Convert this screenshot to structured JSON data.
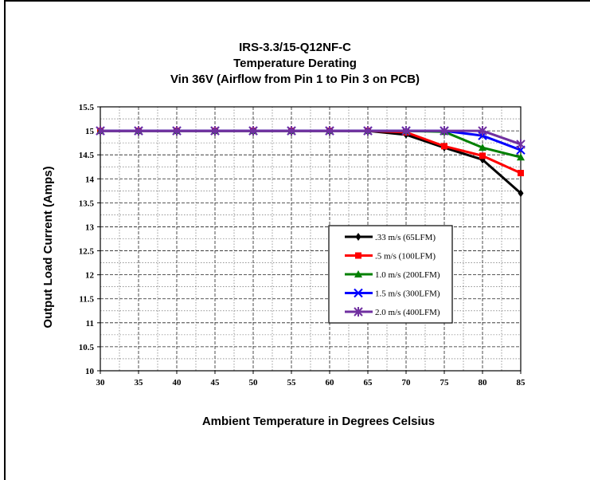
{
  "chart_data": {
    "type": "line",
    "title": "IRS-3.3/15-Q12NF-C",
    "subtitle": "Temperature Derating",
    "subtitle2": "Vin 36V (Airflow from Pin 1 to Pin 3 on PCB)",
    "xlabel": "Ambient Temperature in Degrees Celsius",
    "ylabel": "Output Load Current (Amps)",
    "xlim": [
      30,
      85
    ],
    "ylim": [
      10,
      15.5
    ],
    "x_ticks": [
      "30",
      "35",
      "40",
      "45",
      "50",
      "55",
      "60",
      "65",
      "70",
      "75",
      "80",
      "85"
    ],
    "y_ticks": [
      "10",
      "10.5",
      "11",
      "11.5",
      "12",
      "12.5",
      "13",
      "13.5",
      "14",
      "14.5",
      "15",
      "15.5"
    ],
    "grid": true,
    "legend_position": "center-right",
    "x": [
      30,
      35,
      40,
      45,
      50,
      55,
      60,
      65,
      70,
      75,
      80,
      85
    ],
    "series": [
      {
        "name": ".33 m/s (65LFM)",
        "color": "#000000",
        "marker": "diamond",
        "values": [
          15,
          15,
          15,
          15,
          15,
          15,
          15,
          15,
          14.92,
          14.65,
          14.4,
          13.7
        ]
      },
      {
        "name": ".5 m/s (100LFM)",
        "color": "#ff0000",
        "marker": "square",
        "values": [
          15,
          15,
          15,
          15,
          15,
          15,
          15,
          15,
          14.97,
          14.68,
          14.48,
          14.12
        ]
      },
      {
        "name": "1.0 m/s (200LFM)",
        "color": "#008000",
        "marker": "triangle",
        "values": [
          15,
          15,
          15,
          15,
          15,
          15,
          15,
          15,
          15,
          14.98,
          14.65,
          14.45
        ]
      },
      {
        "name": "1.5 m/s (300LFM)",
        "color": "#0000ff",
        "marker": "x",
        "values": [
          15,
          15,
          15,
          15,
          15,
          15,
          15,
          15,
          15,
          15,
          14.9,
          14.6
        ]
      },
      {
        "name": "2.0 m/s (400LFM)",
        "color": "#7030a0",
        "marker": "star",
        "values": [
          15,
          15,
          15,
          15,
          15,
          15,
          15,
          15,
          15,
          15,
          15,
          14.72
        ]
      }
    ]
  }
}
